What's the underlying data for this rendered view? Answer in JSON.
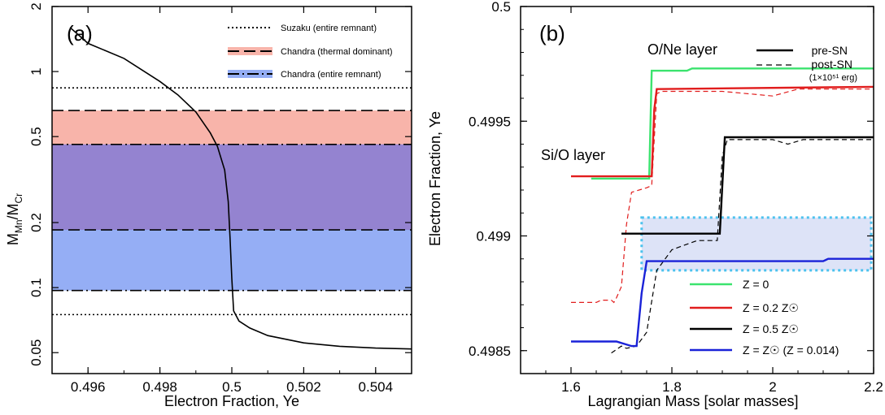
{
  "chart_data": [
    {
      "panel": "a",
      "type": "line",
      "panel_label": "(a)",
      "xlabel": "Electron Fraction, Ye",
      "ylabel": "M_Mn/M_Cr",
      "ylabel_main": "M",
      "ylabel_sub1": "Mn",
      "ylabel_slash": "/M",
      "ylabel_sub2": "Cr",
      "xlim": [
        0.495,
        0.505
      ],
      "ylim": [
        0.04,
        2
      ],
      "yscale": "log",
      "xticks": [
        0.496,
        0.498,
        0.5,
        0.502,
        0.504
      ],
      "xtick_labels": [
        "0.496",
        "0.498",
        "0.5",
        "0.502",
        "0.504"
      ],
      "yticks": [
        0.05,
        0.1,
        0.2,
        0.5,
        1,
        2
      ],
      "ytick_labels": [
        "0.05",
        "0.1",
        "0.2",
        "0.5",
        "1",
        "2"
      ],
      "legend": [
        {
          "label": "Suzaku  (entire remnant)",
          "style": "dotted"
        },
        {
          "label": "Chandra (thermal dominant)",
          "style": "dashed",
          "color": "#f8b4aa"
        },
        {
          "label": "Chandra (entire remnant)",
          "style": "dashdot",
          "color": "#95aef5"
        }
      ],
      "bands": [
        {
          "name": "Suzaku (entire remnant)",
          "lower": 0.075,
          "upper": 0.84,
          "style": "dotted"
        },
        {
          "name": "Chandra (thermal dominant)",
          "lower": 0.185,
          "upper": 0.66,
          "style": "dashed",
          "color": "#f8b4aa"
        },
        {
          "name": "Chandra (entire remnant)",
          "lower": 0.097,
          "upper": 0.46,
          "style": "dashdot",
          "color": "#95aef5"
        }
      ],
      "overlap_color": "#9483d0",
      "series": [
        {
          "name": "Mn/Cr vs Ye",
          "x": [
            0.4955,
            0.496,
            0.497,
            0.498,
            0.4985,
            0.499,
            0.4994,
            0.4996,
            0.4998,
            0.4999,
            0.49995,
            0.5,
            0.50005,
            0.5002,
            0.5005,
            0.501,
            0.502,
            0.503,
            0.504,
            0.505
          ],
          "y": [
            1.6,
            1.35,
            1.15,
            0.9,
            0.78,
            0.65,
            0.52,
            0.45,
            0.35,
            0.25,
            0.17,
            0.11,
            0.078,
            0.07,
            0.065,
            0.06,
            0.0555,
            0.0535,
            0.0525,
            0.052
          ]
        }
      ]
    },
    {
      "panel": "b",
      "type": "line",
      "panel_label": "(b)",
      "xlabel": "Lagrangian Mass [solar masses]",
      "ylabel": "Electron Fraction, Ye",
      "xlim": [
        1.5,
        2.2
      ],
      "ylim": [
        0.4984,
        0.5
      ],
      "xticks": [
        1.6,
        1.8,
        2,
        2.2
      ],
      "xtick_labels": [
        "1.6",
        "1.8",
        "2",
        "2.2"
      ],
      "yticks": [
        0.4985,
        0.499,
        0.4995,
        0.5
      ],
      "ytick_labels": [
        "0.4985",
        "0.499",
        "0.4995",
        "0.5"
      ],
      "annotations": [
        "O/Ne layer",
        "Si/O layer"
      ],
      "line_legend": [
        {
          "label": "pre-SN",
          "style": "solid"
        },
        {
          "label": "post-SN",
          "style": "dashed"
        }
      ],
      "energy_note": "(1×10⁵¹ erg)",
      "z_legend": [
        {
          "label": "Z = 0",
          "color": "#3be36e"
        },
        {
          "label": "Z = 0.2 Z☉",
          "color": "#e11d1d"
        },
        {
          "label": "Z = 0.5 Z☉",
          "color": "#000000"
        },
        {
          "label": "Z = Z☉  (Z = 0.014)",
          "color": "#1a22d8"
        }
      ],
      "box": {
        "x": [
          1.74,
          2.2
        ],
        "y": [
          0.49885,
          0.49908
        ],
        "color": "#4cc2ee",
        "fill": "#dde3f7"
      },
      "series": [
        {
          "name": "Z = 0 pre-SN",
          "color": "#3be36e",
          "dash": "solid",
          "x": [
            1.64,
            1.755,
            1.76,
            1.83,
            1.84,
            2.2
          ],
          "y": [
            0.49925,
            0.49925,
            0.49972,
            0.49972,
            0.49973,
            0.49973
          ]
        },
        {
          "name": "Z = 0.2 Zsun pre-SN",
          "color": "#e11d1d",
          "dash": "solid",
          "x": [
            1.6,
            1.76,
            1.765,
            1.77,
            2.2
          ],
          "y": [
            0.49926,
            0.49926,
            0.49955,
            0.49964,
            0.49965
          ]
        },
        {
          "name": "Z = 0.2 Zsun post-SN",
          "color": "#e11d1d",
          "dash": "dashed",
          "x": [
            1.6,
            1.65,
            1.66,
            1.68,
            1.685,
            1.69,
            1.7,
            1.71,
            1.72,
            1.75,
            1.76,
            1.77,
            1.78,
            1.9,
            2.0,
            2.05,
            2.2
          ],
          "y": [
            0.49871,
            0.49871,
            0.49872,
            0.49872,
            0.49871,
            0.49873,
            0.49878,
            0.49905,
            0.49919,
            0.49921,
            0.49922,
            0.49962,
            0.49963,
            0.49963,
            0.49961,
            0.49964,
            0.49964
          ]
        },
        {
          "name": "Z = 0.5 Zsun pre-SN",
          "color": "#000000",
          "dash": "solid",
          "x": [
            1.7,
            1.895,
            1.905,
            2.2
          ],
          "y": [
            0.49901,
            0.49901,
            0.49943,
            0.49943
          ]
        },
        {
          "name": "Z = 0.5 Zsun post-SN",
          "color": "#000000",
          "dash": "dashed",
          "x": [
            1.68,
            1.7,
            1.71,
            1.73,
            1.75,
            1.77,
            1.8,
            1.85,
            1.89,
            1.9,
            1.91,
            2.0,
            2.03,
            2.06,
            2.2
          ],
          "y": [
            0.49849,
            0.49852,
            0.49851,
            0.49852,
            0.49858,
            0.49885,
            0.49894,
            0.49898,
            0.49898,
            0.49935,
            0.49942,
            0.49942,
            0.4994,
            0.49942,
            0.49942
          ]
        },
        {
          "name": "Z = Zsun pre-SN",
          "color": "#1a22d8",
          "dash": "solid",
          "x": [
            1.6,
            1.69,
            1.72,
            1.73,
            1.74,
            1.75,
            2.1,
            2.11,
            2.2
          ],
          "y": [
            0.49854,
            0.49854,
            0.49852,
            0.49852,
            0.49875,
            0.49889,
            0.49889,
            0.4989,
            0.4989
          ]
        }
      ]
    }
  ]
}
